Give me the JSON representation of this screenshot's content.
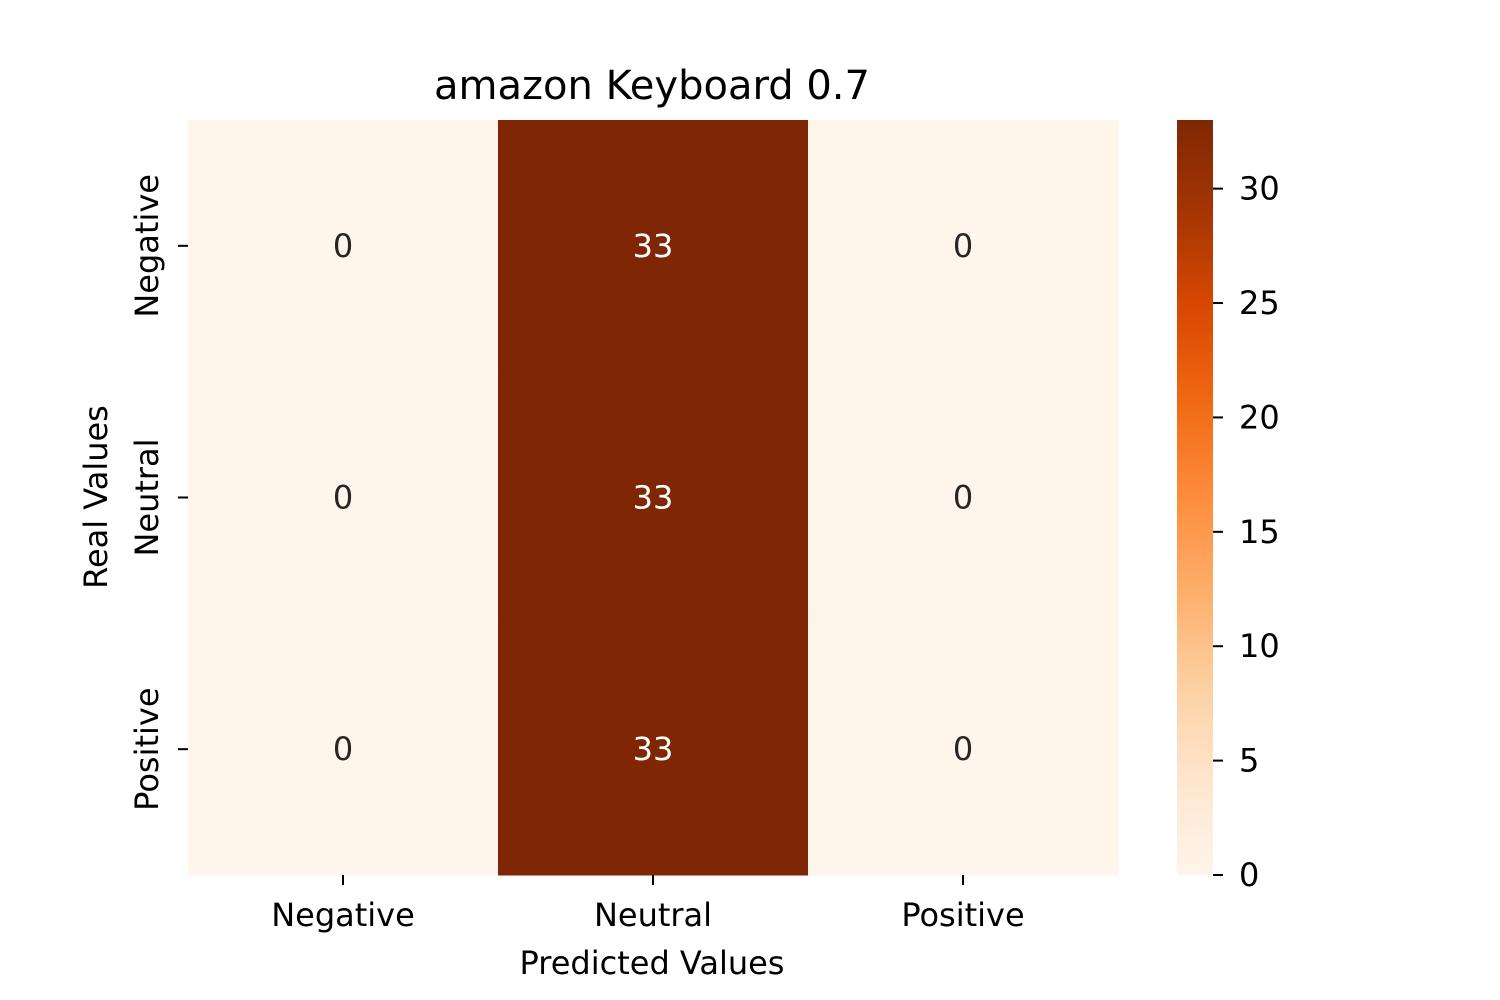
{
  "chart_data": {
    "type": "heatmap",
    "title": "amazon Keyboard 0.7",
    "xlabel": "Predicted Values",
    "ylabel": "Real Values",
    "x_categories": [
      "Negative",
      "Neutral",
      "Positive"
    ],
    "y_categories": [
      "Negative",
      "Neutral",
      "Positive"
    ],
    "values": [
      [
        0,
        33,
        0
      ],
      [
        0,
        33,
        0
      ],
      [
        0,
        33,
        0
      ]
    ],
    "colorbar": {
      "range": [
        0,
        33
      ],
      "ticks": [
        0,
        5,
        10,
        15,
        20,
        25,
        30
      ],
      "colormap": "Oranges"
    },
    "colors": {
      "low": "#fff5eb",
      "high": "#7f2704",
      "text_light": "#ffffff",
      "text_dark": "#262626"
    }
  }
}
